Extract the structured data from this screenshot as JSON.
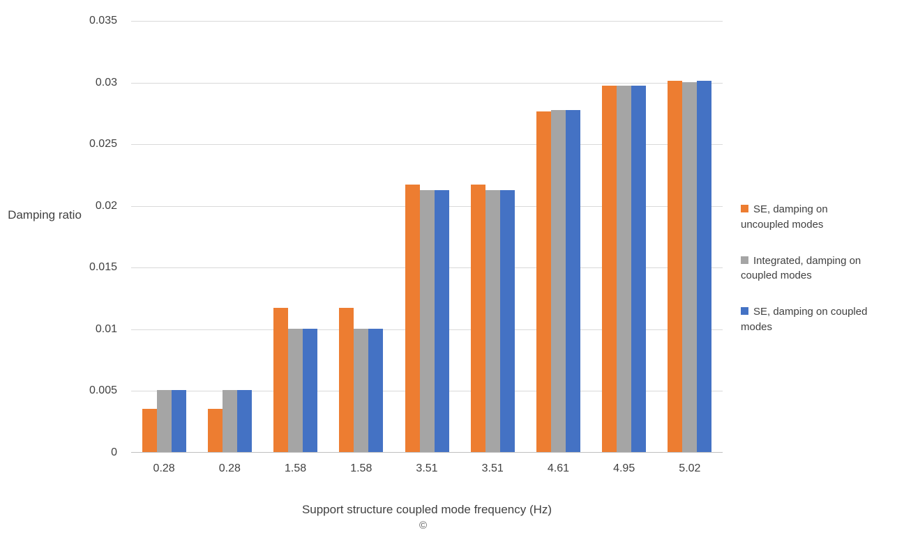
{
  "chart_data": {
    "type": "bar",
    "title": "",
    "xlabel": "Support structure coupled mode frequency (Hz)",
    "ylabel": "Damping ratio",
    "ylim": [
      0,
      0.035
    ],
    "grid": true,
    "legend_position": "right",
    "categories": [
      "0.28",
      "0.28",
      "1.58",
      "1.58",
      "3.51",
      "3.51",
      "4.61",
      "4.95",
      "5.02"
    ],
    "yticks": [
      0,
      0.005,
      0.01,
      0.015,
      0.02,
      0.025,
      0.03,
      0.035
    ],
    "ytick_labels": [
      "0",
      "0.005",
      "0.01",
      "0.015",
      "0.02",
      "0.025",
      "0.03",
      "0.035"
    ],
    "series": [
      {
        "name": "SE, damping on uncoupled modes",
        "color": "#ED7D31",
        "values": [
          0.0035,
          0.0035,
          0.0117,
          0.0117,
          0.0217,
          0.0217,
          0.0276,
          0.0297,
          0.0301
        ]
      },
      {
        "name": "Integrated, damping on coupled modes",
        "color": "#A5A5A5",
        "values": [
          0.005,
          0.005,
          0.01,
          0.01,
          0.0212,
          0.0212,
          0.0277,
          0.0297,
          0.03
        ]
      },
      {
        "name": "SE, damping on coupled modes",
        "color": "#4472C4",
        "values": [
          0.005,
          0.005,
          0.01,
          0.01,
          0.0212,
          0.0212,
          0.0277,
          0.0297,
          0.0301
        ]
      }
    ]
  },
  "footnote": {
    "glyph": "©"
  }
}
